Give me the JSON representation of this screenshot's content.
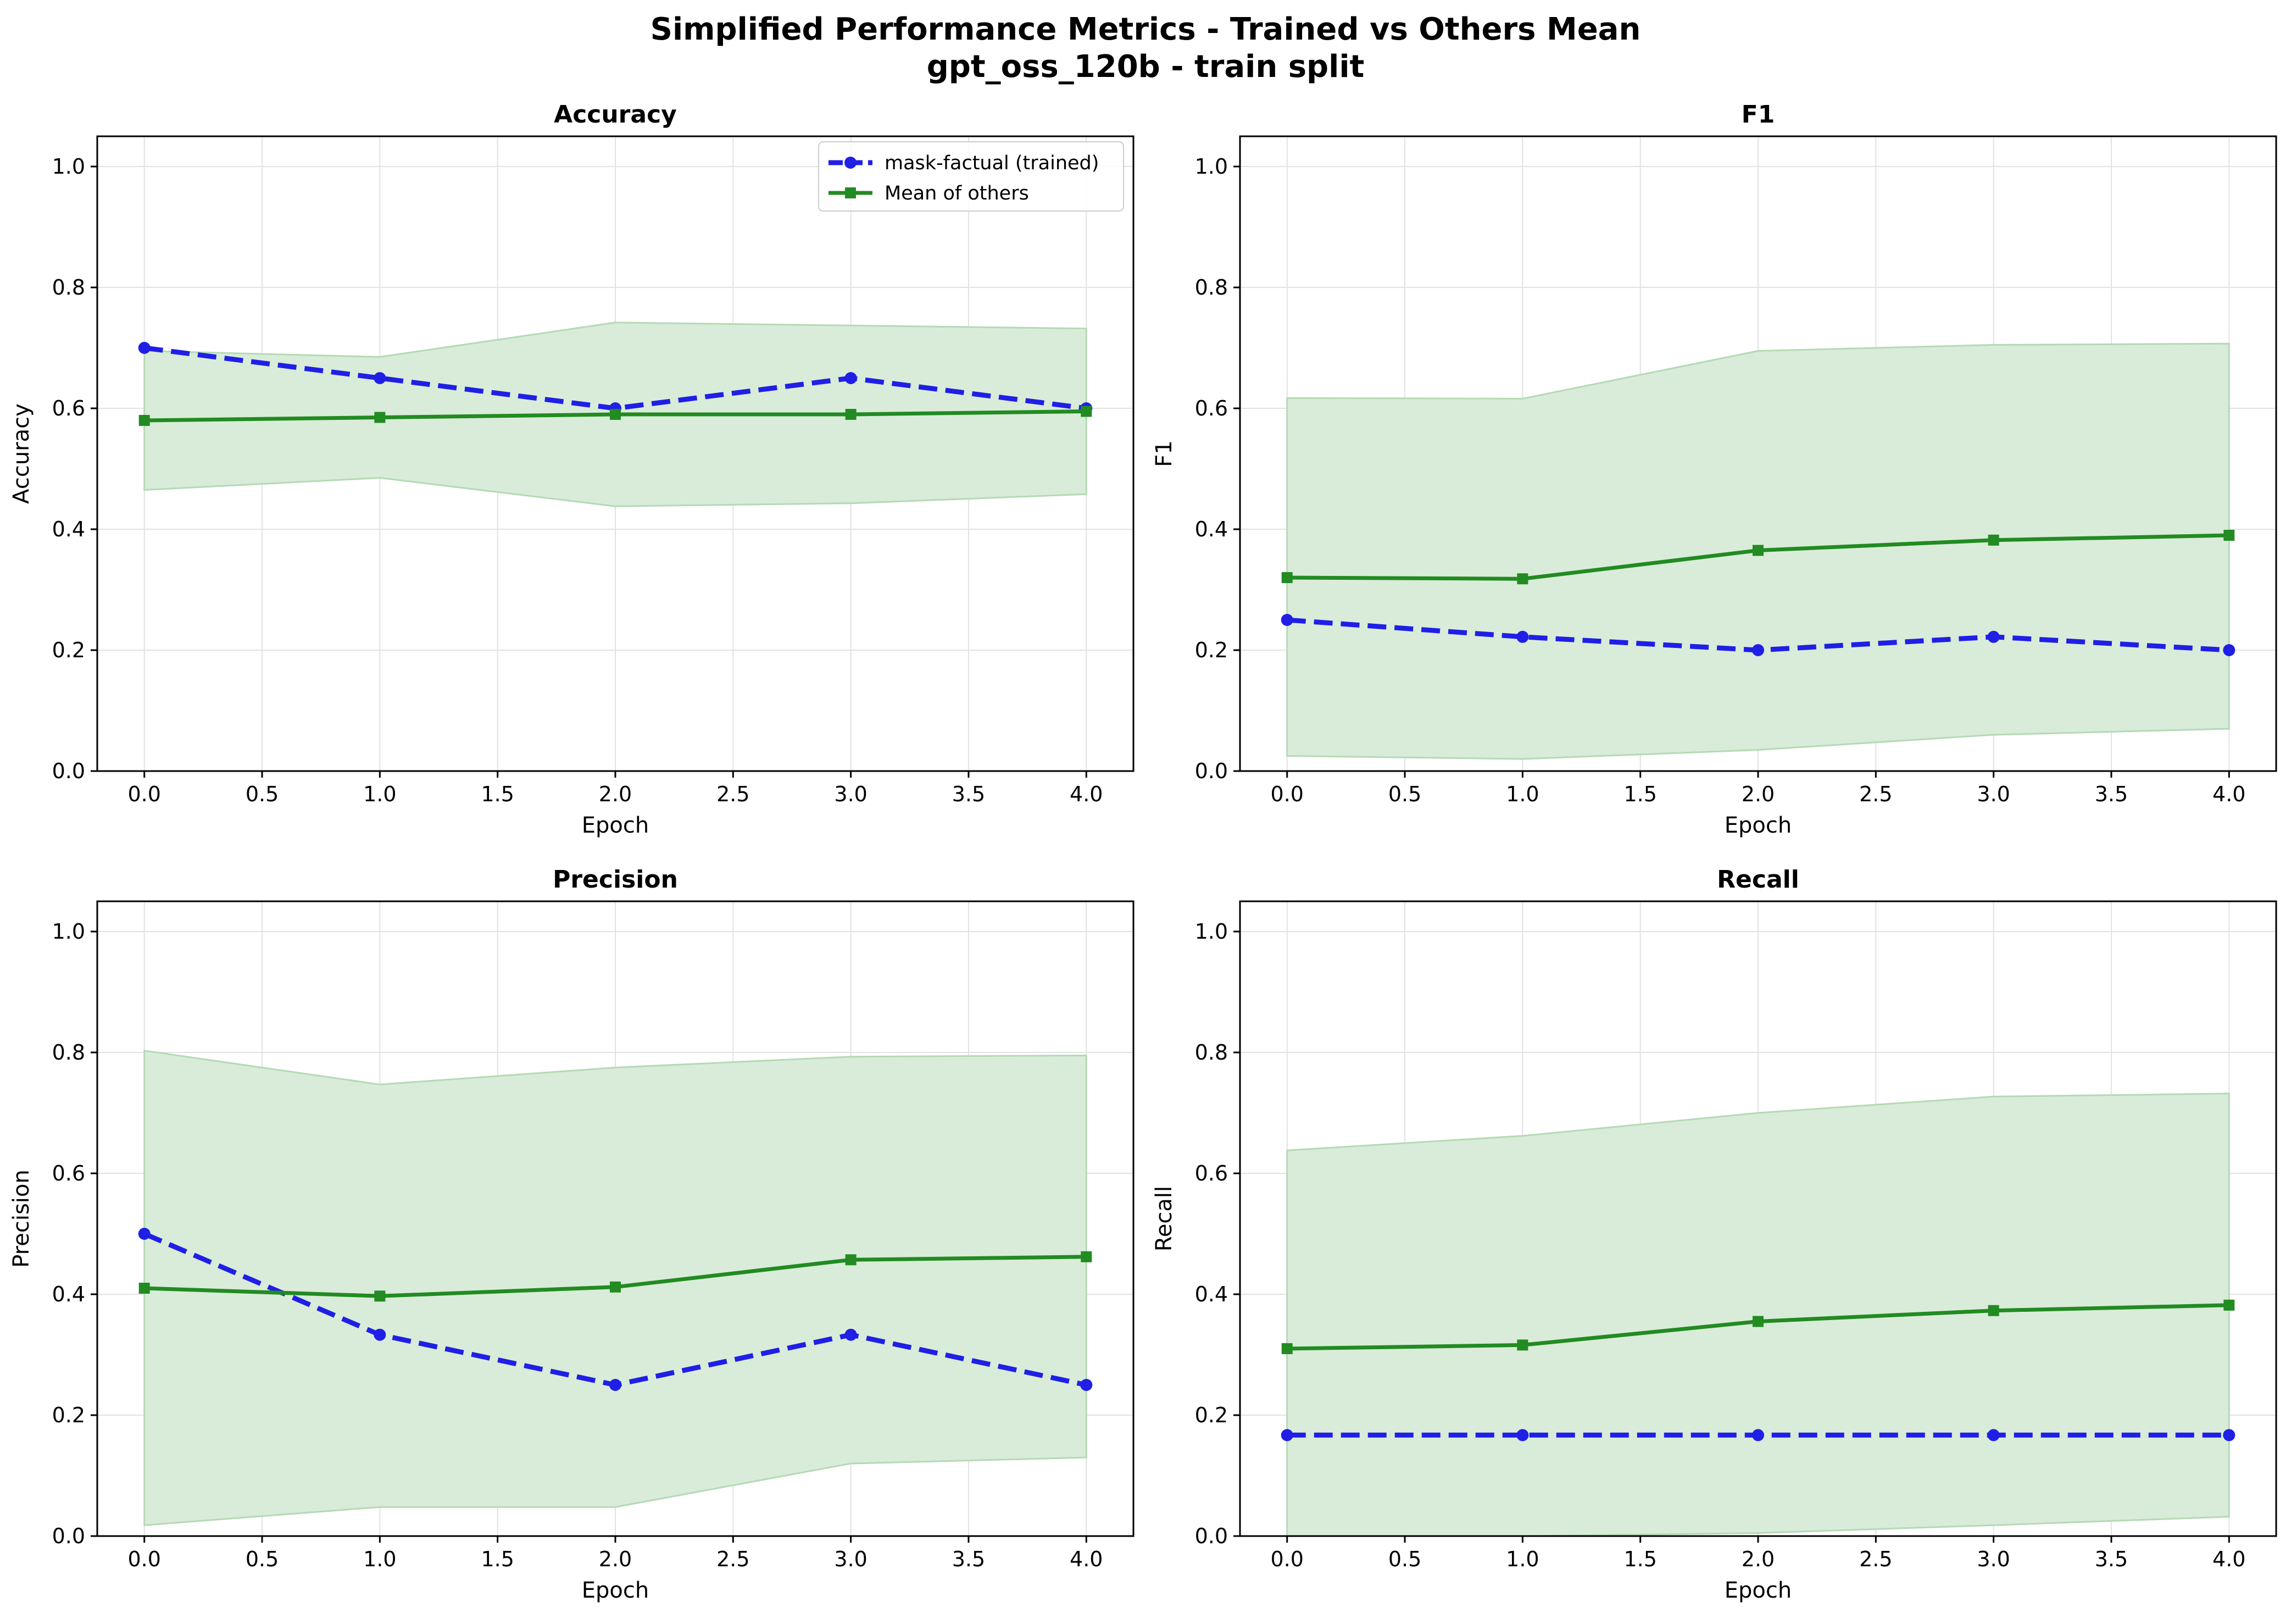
{
  "figure": {
    "title_line1": "Simplified Performance Metrics - Trained vs Others Mean",
    "title_line2": "gpt_oss_120b - train split"
  },
  "legend": {
    "trained_label": "mask-factual (trained)",
    "others_label": "Mean of others"
  },
  "colors": {
    "trained": "#1f1fe6",
    "others": "#228b22",
    "band": "#d9ecd9",
    "band_edge": "#b5d9b5",
    "grid": "#e2e2e2"
  },
  "chart_data": [
    {
      "type": "line",
      "title": "Accuracy",
      "xlabel": "Epoch",
      "ylabel": "Accuracy",
      "xlim": [
        -0.2,
        4.2
      ],
      "ylim": [
        0.0,
        1.05
      ],
      "xticks": [
        "0.0",
        "0.5",
        "1.0",
        "1.5",
        "2.0",
        "2.5",
        "3.0",
        "3.5",
        "4.0"
      ],
      "yticks": [
        "0.0",
        "0.2",
        "0.4",
        "0.6",
        "0.8",
        "1.0"
      ],
      "grid": true,
      "legend": "top-right",
      "x": [
        0,
        1,
        2,
        3,
        4
      ],
      "series": [
        {
          "name": "mask-factual (trained)",
          "values": [
            0.7,
            0.65,
            0.6,
            0.65,
            0.6
          ]
        },
        {
          "name": "Mean of others",
          "values": [
            0.58,
            0.585,
            0.59,
            0.59,
            0.595
          ]
        }
      ],
      "band": {
        "lower": [
          0.465,
          0.485,
          0.438,
          0.443,
          0.458
        ],
        "upper": [
          0.695,
          0.685,
          0.742,
          0.737,
          0.732
        ]
      }
    },
    {
      "type": "line",
      "title": "F1",
      "xlabel": "Epoch",
      "ylabel": "F1",
      "xlim": [
        -0.2,
        4.2
      ],
      "ylim": [
        0.0,
        1.05
      ],
      "xticks": [
        "0.0",
        "0.5",
        "1.0",
        "1.5",
        "2.0",
        "2.5",
        "3.0",
        "3.5",
        "4.0"
      ],
      "yticks": [
        "0.0",
        "0.2",
        "0.4",
        "0.6",
        "0.8",
        "1.0"
      ],
      "grid": true,
      "x": [
        0,
        1,
        2,
        3,
        4
      ],
      "series": [
        {
          "name": "mask-factual (trained)",
          "values": [
            0.25,
            0.222,
            0.2,
            0.222,
            0.2
          ]
        },
        {
          "name": "Mean of others",
          "values": [
            0.32,
            0.318,
            0.365,
            0.382,
            0.39
          ]
        }
      ],
      "band": {
        "lower": [
          0.025,
          0.02,
          0.035,
          0.06,
          0.07
        ],
        "upper": [
          0.617,
          0.616,
          0.695,
          0.705,
          0.707
        ]
      }
    },
    {
      "type": "line",
      "title": "Precision",
      "xlabel": "Epoch",
      "ylabel": "Precision",
      "xlim": [
        -0.2,
        4.2
      ],
      "ylim": [
        0.0,
        1.05
      ],
      "xticks": [
        "0.0",
        "0.5",
        "1.0",
        "1.5",
        "2.0",
        "2.5",
        "3.0",
        "3.5",
        "4.0"
      ],
      "yticks": [
        "0.0",
        "0.2",
        "0.4",
        "0.6",
        "0.8",
        "1.0"
      ],
      "grid": true,
      "x": [
        0,
        1,
        2,
        3,
        4
      ],
      "series": [
        {
          "name": "mask-factual (trained)",
          "values": [
            0.5,
            0.333,
            0.25,
            0.333,
            0.25
          ]
        },
        {
          "name": "Mean of others",
          "values": [
            0.41,
            0.397,
            0.412,
            0.457,
            0.462
          ]
        }
      ],
      "band": {
        "lower": [
          0.018,
          0.048,
          0.048,
          0.12,
          0.13
        ],
        "upper": [
          0.803,
          0.747,
          0.775,
          0.793,
          0.795
        ]
      }
    },
    {
      "type": "line",
      "title": "Recall",
      "xlabel": "Epoch",
      "ylabel": "Recall",
      "xlim": [
        -0.2,
        4.2
      ],
      "ylim": [
        0.0,
        1.05
      ],
      "xticks": [
        "0.0",
        "0.5",
        "1.0",
        "1.5",
        "2.0",
        "2.5",
        "3.0",
        "3.5",
        "4.0"
      ],
      "yticks": [
        "0.0",
        "0.2",
        "0.4",
        "0.6",
        "0.8",
        "1.0"
      ],
      "grid": true,
      "x": [
        0,
        1,
        2,
        3,
        4
      ],
      "series": [
        {
          "name": "mask-factual (trained)",
          "values": [
            0.167,
            0.167,
            0.167,
            0.167,
            0.167
          ]
        },
        {
          "name": "Mean of others",
          "values": [
            0.31,
            0.316,
            0.355,
            0.373,
            0.382
          ]
        }
      ],
      "band": {
        "lower": [
          0.0,
          0.0,
          0.005,
          0.018,
          0.032
        ],
        "upper": [
          0.638,
          0.662,
          0.7,
          0.727,
          0.732
        ]
      }
    }
  ]
}
